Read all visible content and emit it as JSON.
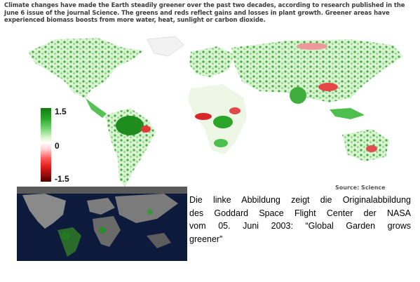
{
  "header": {
    "text": "Climate changes have made the Earth steadily greener over the past two decades, according to research published in the June 6 issue of the journal Science. The greens and reds reflect gains and losses in plant growth. Greener areas have experienced biomass boosts from more water, heat, sunlight or carbon dioxide."
  },
  "legend": {
    "max_label": "1.5",
    "mid_label": "0",
    "min_label": "-1.5",
    "colors": {
      "high": "#137a13",
      "mid": "#ffffff",
      "low": "#4c0000"
    }
  },
  "source": {
    "text": "Source: Science"
  },
  "caption": {
    "lines": [
      "Die linke Abbildung zeigt die Originalabbildung",
      "des Goddard Space Flight Center der NASA",
      "vom 05. Juni 2003: “Global Garden grows",
      "greener”"
    ]
  }
}
